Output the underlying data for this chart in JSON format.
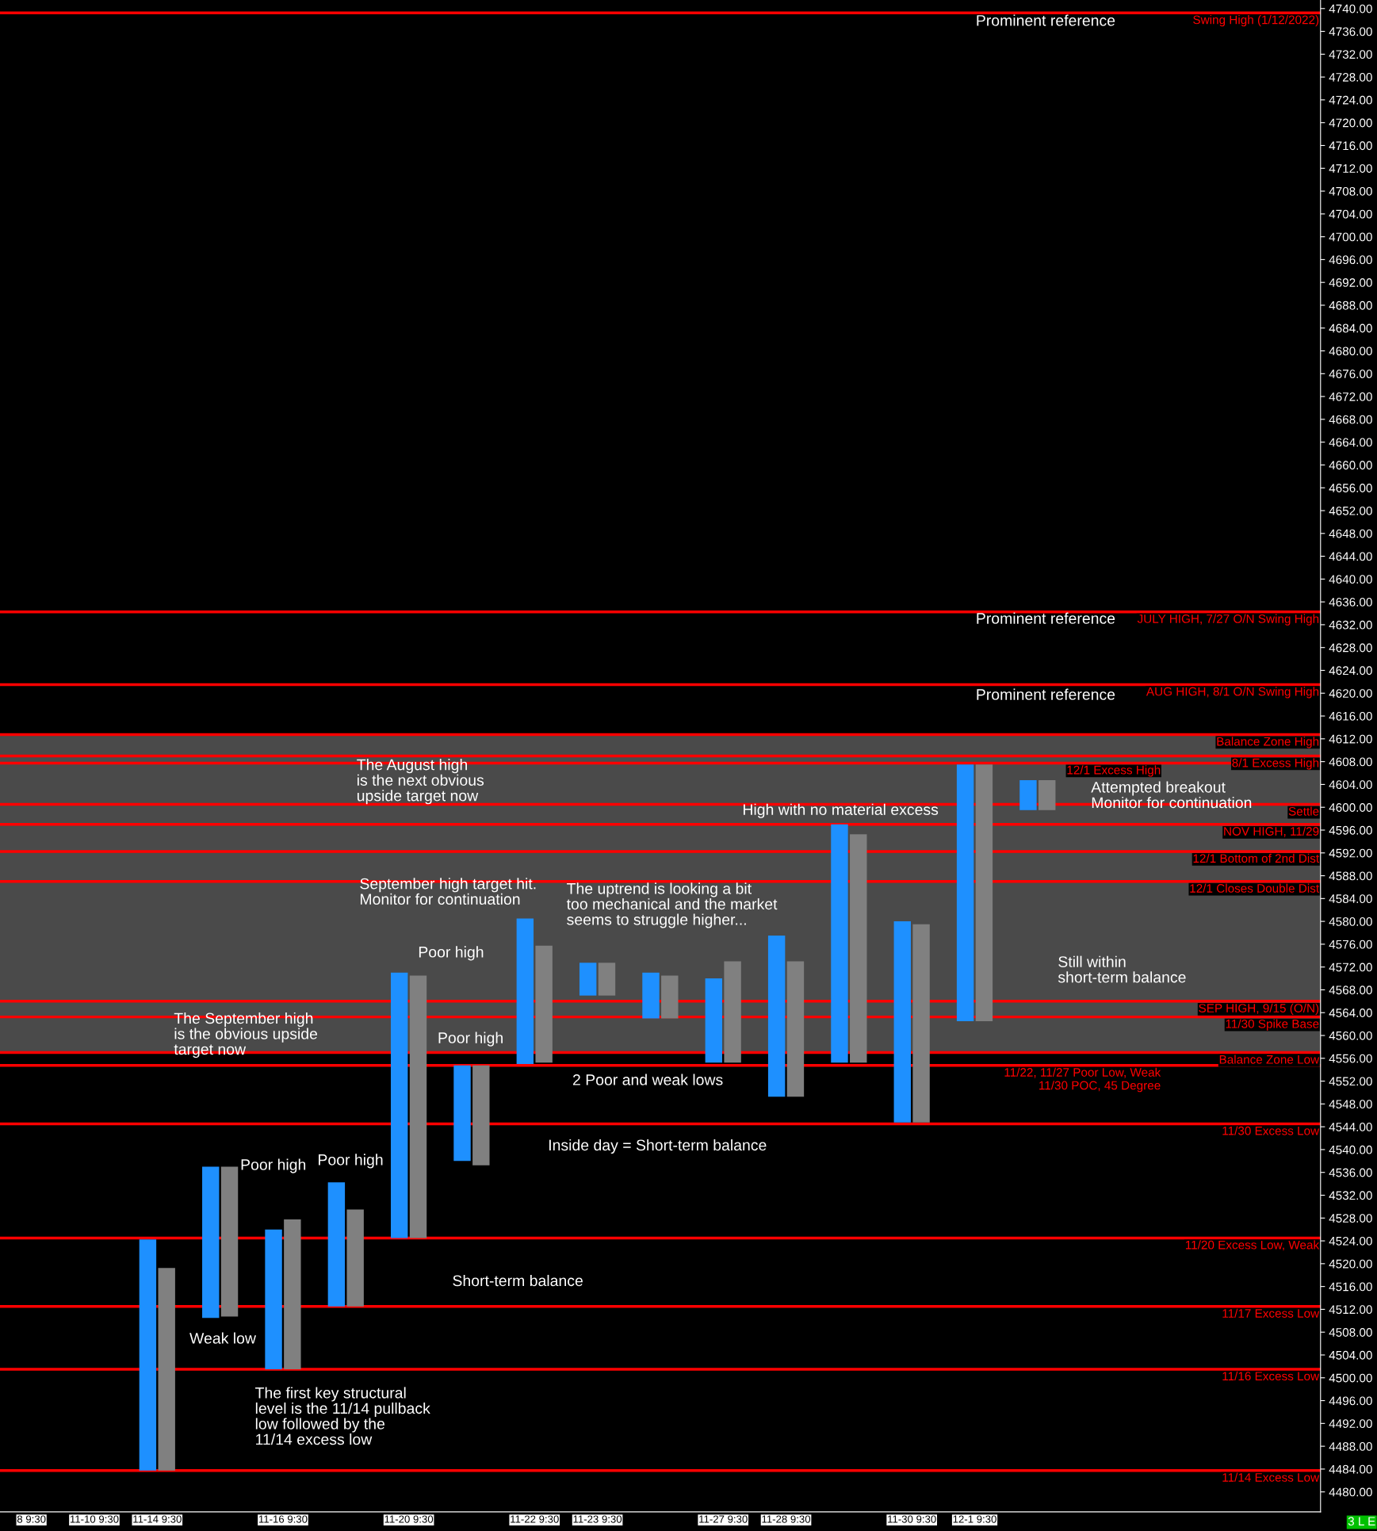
{
  "chart_data": {
    "type": "bar",
    "categories": [
      "8 9:30",
      "11-10 9:30",
      "11-14 9:30",
      null,
      "11-16 9:30",
      null,
      "11-20 9:30",
      null,
      "11-22 9:30",
      "11-23 9:30",
      null,
      "11-27 9:30",
      "11-28 9:30",
      null,
      "11-30 9:30",
      "12-1 9:30",
      null,
      null,
      null,
      null,
      null
    ],
    "series": [
      {
        "color": "#1e90ff",
        "base": [
          null,
          null,
          4483.75,
          4510.5,
          4501.5,
          4512.5,
          4524.5,
          4538,
          4555,
          4567,
          4563,
          4555.25,
          4549.25,
          4555.25,
          4544.75,
          4562.5,
          4599.5,
          null,
          null,
          null,
          null
        ],
        "values": [
          null,
          null,
          40.5,
          26.5,
          24.5,
          21.75,
          46.5,
          16.75,
          25.5,
          5.75,
          8,
          14.75,
          28.25,
          41.75,
          35.25,
          45,
          5.25,
          null,
          null,
          null,
          null
        ]
      },
      {
        "color": "#808080",
        "base": [
          null,
          null,
          4483.75,
          4510.75,
          4501.5,
          4512.5,
          4524.5,
          4537.25,
          4555.25,
          4567,
          4563,
          4555.25,
          4549.25,
          4555.25,
          4544.75,
          4562.5,
          4599.5,
          null,
          null,
          null,
          null
        ],
        "values": [
          null,
          null,
          35.5,
          26.25,
          26.25,
          17,
          46,
          17.5,
          20.5,
          5.75,
          7.5,
          17.75,
          23.75,
          40,
          34.75,
          45,
          5.25,
          null,
          null,
          null,
          null
        ]
      }
    ],
    "ylim": [
      4476.5,
      4741.5
    ],
    "yticks": [
      {
        "value": 4480,
        "label": "4480.00"
      },
      {
        "value": 4484,
        "label": "4484.00"
      },
      {
        "value": 4488,
        "label": "4488.00"
      },
      {
        "value": 4492,
        "label": "4492.00"
      },
      {
        "value": 4496,
        "label": "4496.00"
      },
      {
        "value": 4500,
        "label": "4500.00"
      },
      {
        "value": 4504,
        "label": "4504.00"
      },
      {
        "value": 4508,
        "label": "4508.00"
      },
      {
        "value": 4512,
        "label": "4512.00"
      },
      {
        "value": 4516,
        "label": "4516.00"
      },
      {
        "value": 4520,
        "label": "4520.00"
      },
      {
        "value": 4524,
        "label": "4524.00"
      },
      {
        "value": 4528,
        "label": "4528.00"
      },
      {
        "value": 4532,
        "label": "4532.00"
      },
      {
        "value": 4536,
        "label": "4536.00"
      },
      {
        "value": 4540,
        "label": "4540.00"
      },
      {
        "value": 4544,
        "label": "4544.00"
      },
      {
        "value": 4548,
        "label": "4548.00"
      },
      {
        "value": 4552,
        "label": "4552.00"
      },
      {
        "value": 4556,
        "label": "4556.00"
      },
      {
        "value": 4560,
        "label": "4560.00"
      },
      {
        "value": 4564,
        "label": "4564.00"
      },
      {
        "value": 4568,
        "label": "4568.00"
      },
      {
        "value": 4572,
        "label": "4572.00"
      },
      {
        "value": 4576,
        "label": "4576.00"
      },
      {
        "value": 4580,
        "label": "4580.00"
      },
      {
        "value": 4584,
        "label": "4584.00"
      },
      {
        "value": 4588,
        "label": "4588.00"
      },
      {
        "value": 4592,
        "label": "4592.00"
      },
      {
        "value": 4596,
        "label": "4596.00"
      },
      {
        "value": 4600,
        "label": "4600.00"
      },
      {
        "value": 4604,
        "label": "4604.00"
      },
      {
        "value": 4608,
        "label": "4608.00"
      },
      {
        "value": 4612,
        "label": "4612.00"
      },
      {
        "value": 4616,
        "label": "4616.00"
      },
      {
        "value": 4620,
        "label": "4620.00"
      },
      {
        "value": 4624,
        "label": "4624.00"
      },
      {
        "value": 4628,
        "label": "4628.00"
      },
      {
        "value": 4632,
        "label": "4632.00"
      },
      {
        "value": 4636,
        "label": "4636.00"
      },
      {
        "value": 4640,
        "label": "4640.00"
      },
      {
        "value": 4644,
        "label": "4644.00"
      },
      {
        "value": 4648,
        "label": "4648.00"
      },
      {
        "value": 4652,
        "label": "4652.00"
      },
      {
        "value": 4656,
        "label": "4656.00"
      },
      {
        "value": 4660,
        "label": "4660.00"
      },
      {
        "value": 4664,
        "label": "4664.00"
      },
      {
        "value": 4668,
        "label": "4668.00"
      },
      {
        "value": 4672,
        "label": "4672.00"
      },
      {
        "value": 4676,
        "label": "4676.00"
      },
      {
        "value": 4680,
        "label": "4680.00"
      },
      {
        "value": 4684,
        "label": "4684.00"
      },
      {
        "value": 4688,
        "label": "4688.00"
      },
      {
        "value": 4692,
        "label": "4692.00"
      },
      {
        "value": 4696,
        "label": "4696.00"
      },
      {
        "value": 4700,
        "label": "4700.00"
      },
      {
        "value": 4704,
        "label": "4704.00"
      },
      {
        "value": 4708,
        "label": "4708.00"
      },
      {
        "value": 4712,
        "label": "4712.00"
      },
      {
        "value": 4716,
        "label": "4716.00"
      },
      {
        "value": 4720,
        "label": "4720.00"
      },
      {
        "value": 4724,
        "label": "4724.00"
      },
      {
        "value": 4728,
        "label": "4728.00"
      },
      {
        "value": 4732,
        "label": "4732.00"
      },
      {
        "value": 4736,
        "label": "4736.00"
      },
      {
        "value": 4740,
        "label": "4740.00"
      }
    ],
    "bands": [
      {
        "axis": "y",
        "from": 4557,
        "to": 4612.75,
        "color": "#4a4a4a"
      }
    ],
    "ref_lines": [
      {
        "axis": "y",
        "value": 4739.25,
        "label": "Swing High (1/12/2022)",
        "color": "#ff0000"
      },
      {
        "axis": "y",
        "value": 4634.25,
        "label": "JULY HIGH, 7/27 O/N Swing High",
        "color": "#ff0000"
      },
      {
        "axis": "y",
        "value": 4621.5,
        "label": "AUG HIGH, 8/1 O/N Swing High",
        "color": "#ff0000"
      },
      {
        "axis": "y",
        "value": 4612.75,
        "label": "Balance Zone High",
        "color": "#ff0000"
      },
      {
        "axis": "y",
        "value": 4609,
        "label": "8/1 Excess High",
        "color": "#ff0000"
      },
      {
        "axis": "y",
        "value": 4607.75,
        "label": "12/1 Excess High",
        "color": "#ff0000"
      },
      {
        "axis": "y",
        "value": 4600.5,
        "label": "Settle",
        "color": "#ff0000"
      },
      {
        "axis": "y",
        "value": 4597,
        "label": "NOV HIGH, 11/29",
        "color": "#ff0000"
      },
      {
        "axis": "y",
        "value": 4592.25,
        "label": "12/1 Bottom of 2nd Dist",
        "color": "#ff0000"
      },
      {
        "axis": "y",
        "value": 4587,
        "label": "12/1 Closes Double Dist",
        "color": "#ff0000"
      },
      {
        "axis": "y",
        "value": 4566,
        "label": "SEP HIGH, 9/15 (O/N)",
        "color": "#ff0000"
      },
      {
        "axis": "y",
        "value": 4563.25,
        "label": "11/30 Spike Base",
        "color": "#ff0000"
      },
      {
        "axis": "y",
        "value": 4557,
        "label": "Balance Zone Low",
        "color": "#ff0000"
      },
      {
        "axis": "y",
        "value": 4554.75,
        "label": "11/22, 11/27 Poor Low, Weak\n11/30 POC, 45 Degree",
        "color": "#ff0000"
      },
      {
        "axis": "y",
        "value": 4544.5,
        "label": "11/30 Excess Low",
        "color": "#ff0000"
      },
      {
        "axis": "y",
        "value": 4524.5,
        "label": "11/20 Excess Low, Weak",
        "color": "#ff0000"
      },
      {
        "axis": "y",
        "value": 4512.5,
        "label": "11/17 Excess Low",
        "color": "#ff0000"
      },
      {
        "axis": "y",
        "value": 4501.5,
        "label": "11/16 Excess Low",
        "color": "#ff0000"
      },
      {
        "axis": "y",
        "value": 4483.75,
        "label": "11/14 Excess Low",
        "color": "#ff0000"
      }
    ],
    "annotations": [
      "Prominent reference",
      "Prominent reference",
      "Prominent reference",
      "The August high\nis the next obvious\nupside target now",
      "September high target hit.\nMonitor for continuation",
      "The uptrend is looking a bit\ntoo mechanical and the market\nseems to struggle higher...",
      "Poor high",
      "Poor high",
      "2 Poor and weak lows",
      "Inside day = Short-term balance",
      "High with no material excess",
      "Attempted breakout\nMonitor for continuation",
      "Still within\nshort-term balance",
      "The September high\nis the obvious upside\ntarget now",
      "Poor high",
      "Poor high",
      "Short-term balance",
      "Weak low",
      "The first key structural\nlevel is the 11/14 pullback\nlow followed by the\n11/14 excess low",
      "3 L E"
    ]
  }
}
